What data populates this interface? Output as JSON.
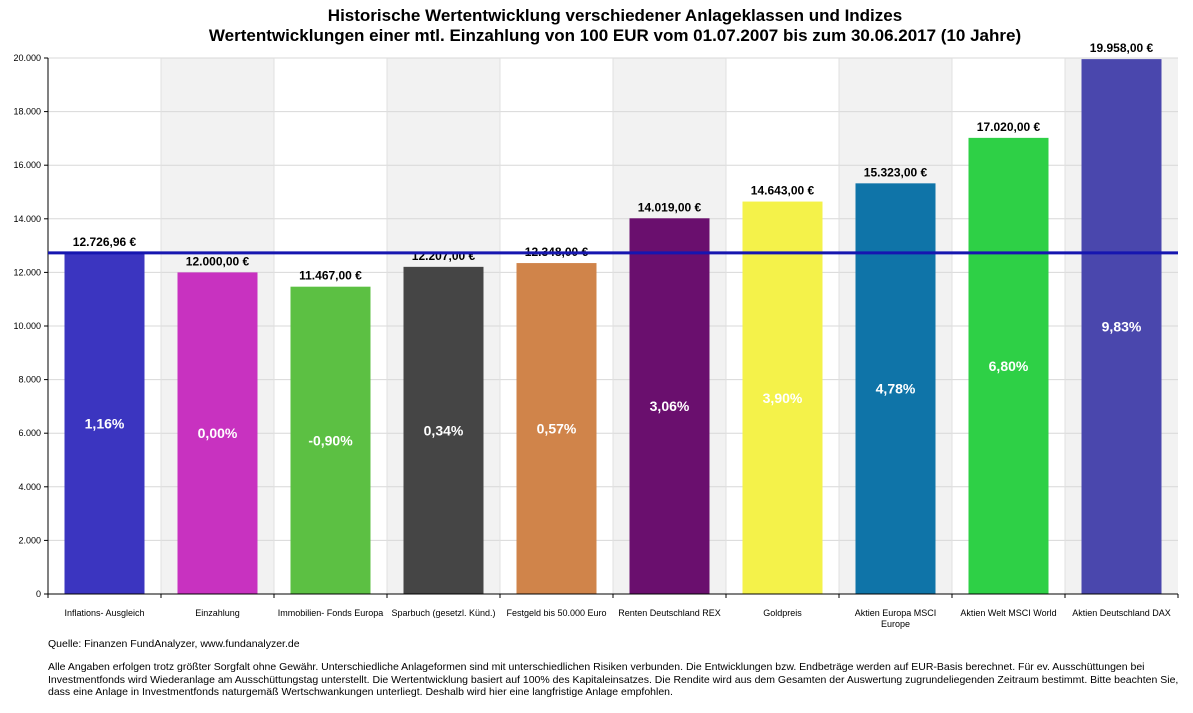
{
  "chart_data": {
    "type": "bar",
    "title": "Historische Wertentwicklung verschiedener Anlageklassen und Indizes",
    "subtitle": "Wertentwicklungen einer mtl. Einzahlung von 100 EUR vom 01.07.2007 bis zum 30.06.2017 (10 Jahre)",
    "xlabel": "",
    "ylabel": "",
    "ylim": [
      0,
      20000
    ],
    "yticks": [
      0,
      2000,
      4000,
      6000,
      8000,
      10000,
      12000,
      14000,
      16000,
      18000,
      20000
    ],
    "ytick_labels": [
      "0",
      "2.000",
      "4.000",
      "6.000",
      "8.000",
      "10.000",
      "12.000",
      "14.000",
      "16.000",
      "18.000",
      "20.000"
    ],
    "categories": [
      "Inflations- Ausgleich",
      "Einzahlung",
      "Immobilien- Fonds Europa",
      "Sparbuch (gesetzl. Künd.)",
      "Festgeld bis 50.000 Euro",
      "Renten Deutschland REX",
      "Goldpreis",
      "Aktien Europa MSCI Europe",
      "Aktien Welt MSCI World",
      "Aktien Deutschland DAX"
    ],
    "category_lines": [
      [
        "Inflations- Ausgleich"
      ],
      [
        "Einzahlung"
      ],
      [
        "Immobilien- Fonds Europa"
      ],
      [
        "Sparbuch (gesetzl. Künd.)"
      ],
      [
        "Festgeld bis 50.000 Euro"
      ],
      [
        "Renten Deutschland REX"
      ],
      [
        "Goldpreis"
      ],
      [
        "Aktien Europa MSCI",
        "Europe"
      ],
      [
        "Aktien Welt MSCI World"
      ],
      [
        "Aktien Deutschland DAX"
      ]
    ],
    "values": [
      12726.96,
      12000.0,
      11467.0,
      12207.0,
      12348.0,
      14019.0,
      14643.0,
      15323.0,
      17020.0,
      19958.0
    ],
    "value_labels": [
      "12.726,96 €",
      "12.000,00 €",
      "11.467,00 €",
      "12.207,00 €",
      "12.348,00 €",
      "14.019,00 €",
      "14.643,00 €",
      "15.323,00 €",
      "17.020,00 €",
      "19.958,00 €"
    ],
    "returns": [
      "1,16%",
      "0,00%",
      "-0,90%",
      "0,34%",
      "0,57%",
      "3,06%",
      "3,90%",
      "4,78%",
      "6,80%",
      "9,83%"
    ],
    "colors": [
      "#3b35c0",
      "#c832c0",
      "#5cc043",
      "#454545",
      "#d0844a",
      "#6a0f6e",
      "#f4f24a",
      "#0f74a8",
      "#2ed046",
      "#4a47ad"
    ],
    "reference_line": {
      "value": 12726.96,
      "color": "#1616b0"
    },
    "grid": true
  },
  "footer": {
    "source": "Quelle: Finanzen FundAnalyzer, www.fundanalyzer.de",
    "disclaimer": "Alle Angaben erfolgen trotz größter Sorgfalt ohne Gewähr. Unterschiedliche Anlageformen sind mit unterschiedlichen Risiken verbunden. Die Entwicklungen bzw. Endbeträge werden auf EUR-Basis berechnet. Für ev. Ausschüttungen bei Investmentfonds wird Wiederanlage am Ausschüttungstag unterstellt. Die Wertentwicklung basiert auf 100% des Kapitaleinsatzes. Die Rendite wird aus dem Gesamten der Auswertung zugrundeliegenden Zeitraum bestimmt. Bitte beachten Sie, dass eine Anlage in Investmentfonds naturgemäß Wertschwankungen unterliegt. Deshalb wird hier eine langfristige Anlage empfohlen."
  }
}
